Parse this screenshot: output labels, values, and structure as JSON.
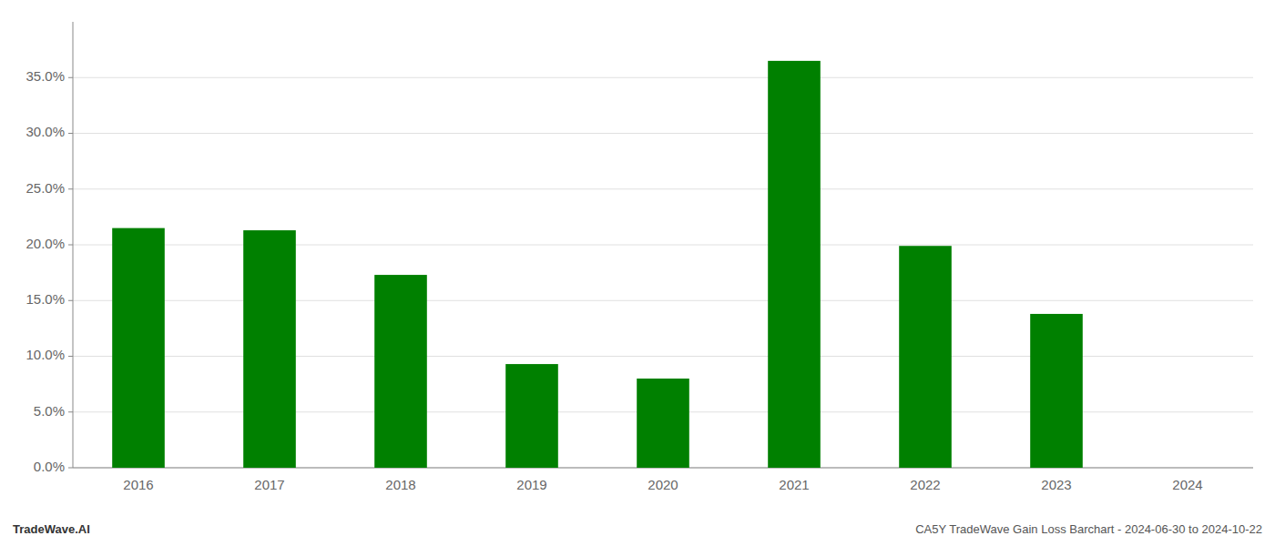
{
  "chart_data": {
    "type": "bar",
    "categories": [
      "2016",
      "2017",
      "2018",
      "2019",
      "2020",
      "2021",
      "2022",
      "2023",
      "2024"
    ],
    "values": [
      0.215,
      0.213,
      0.173,
      0.093,
      0.08,
      0.365,
      0.199,
      0.138,
      0.0
    ],
    "color": "#008000",
    "ylim": [
      0,
      0.4
    ],
    "yticks": [
      {
        "value": 0.0,
        "label": "0.0%"
      },
      {
        "value": 0.05,
        "label": "5.0%"
      },
      {
        "value": 0.1,
        "label": "10.0%"
      },
      {
        "value": 0.15,
        "label": "15.0%"
      },
      {
        "value": 0.2,
        "label": "20.0%"
      },
      {
        "value": 0.25,
        "label": "25.0%"
      },
      {
        "value": 0.3,
        "label": "30.0%"
      },
      {
        "value": 0.35,
        "label": "35.0%"
      }
    ],
    "grid": true,
    "annotations": [
      "TradeWave.AI",
      "CA5Y TradeWave Gain Loss Barchart - 2024-06-30 to 2024-10-22"
    ]
  }
}
